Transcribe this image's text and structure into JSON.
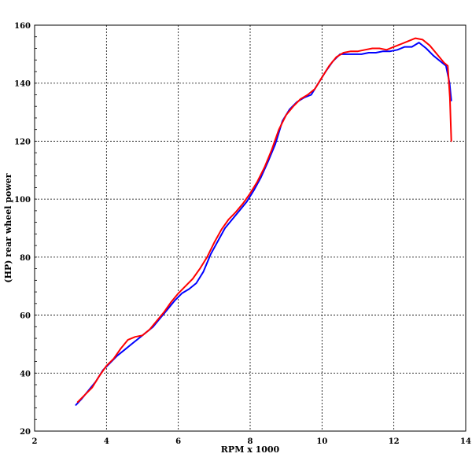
{
  "chart_data": {
    "type": "line",
    "xlabel": "RPM x 1000",
    "ylabel": "(HP) rear wheel power",
    "xlim": [
      2,
      14
    ],
    "ylim": [
      20,
      160
    ],
    "xticks": [
      2,
      4,
      6,
      8,
      10,
      12,
      14
    ],
    "yticks": [
      20,
      40,
      60,
      80,
      100,
      120,
      140,
      160
    ],
    "grid": true,
    "series": [
      {
        "color": "#0000ff",
        "points": [
          [
            3.15,
            29
          ],
          [
            3.3,
            31
          ],
          [
            3.5,
            34
          ],
          [
            3.7,
            37
          ],
          [
            3.9,
            41
          ],
          [
            4.1,
            43.5
          ],
          [
            4.3,
            46
          ],
          [
            4.5,
            48
          ],
          [
            4.7,
            50
          ],
          [
            4.9,
            52
          ],
          [
            5.1,
            54
          ],
          [
            5.3,
            56
          ],
          [
            5.5,
            59
          ],
          [
            5.7,
            62
          ],
          [
            5.9,
            65
          ],
          [
            6.1,
            67.5
          ],
          [
            6.3,
            69
          ],
          [
            6.5,
            71
          ],
          [
            6.7,
            75
          ],
          [
            6.9,
            81
          ],
          [
            7.1,
            85.5
          ],
          [
            7.3,
            90
          ],
          [
            7.5,
            93
          ],
          [
            7.7,
            96
          ],
          [
            7.9,
            99
          ],
          [
            8.1,
            103
          ],
          [
            8.3,
            107.5
          ],
          [
            8.5,
            113
          ],
          [
            8.7,
            119
          ],
          [
            8.9,
            127
          ],
          [
            9.1,
            131
          ],
          [
            9.3,
            133.5
          ],
          [
            9.5,
            135
          ],
          [
            9.7,
            136
          ],
          [
            9.9,
            140
          ],
          [
            10.1,
            144
          ],
          [
            10.3,
            147.5
          ],
          [
            10.5,
            150
          ],
          [
            10.7,
            150
          ],
          [
            10.9,
            150
          ],
          [
            11.1,
            150
          ],
          [
            11.3,
            150.5
          ],
          [
            11.5,
            150.5
          ],
          [
            11.7,
            151
          ],
          [
            11.9,
            151
          ],
          [
            12.1,
            151.5
          ],
          [
            12.3,
            152.5
          ],
          [
            12.5,
            152.5
          ],
          [
            12.7,
            154
          ],
          [
            12.9,
            152
          ],
          [
            13.1,
            149.5
          ],
          [
            13.3,
            147.5
          ],
          [
            13.45,
            146
          ],
          [
            13.55,
            140
          ],
          [
            13.6,
            134
          ]
        ]
      },
      {
        "color": "#ff0000",
        "points": [
          [
            3.2,
            30
          ],
          [
            3.4,
            32.5
          ],
          [
            3.6,
            35
          ],
          [
            3.8,
            39
          ],
          [
            4.0,
            42.5
          ],
          [
            4.2,
            45
          ],
          [
            4.4,
            48.5
          ],
          [
            4.6,
            51.5
          ],
          [
            4.8,
            52.5
          ],
          [
            5.0,
            53
          ],
          [
            5.2,
            55
          ],
          [
            5.4,
            58
          ],
          [
            5.6,
            61
          ],
          [
            5.8,
            64.5
          ],
          [
            6.0,
            67.5
          ],
          [
            6.2,
            70
          ],
          [
            6.4,
            72.5
          ],
          [
            6.6,
            76
          ],
          [
            6.8,
            80
          ],
          [
            7.0,
            85
          ],
          [
            7.2,
            89.5
          ],
          [
            7.4,
            93
          ],
          [
            7.6,
            95.5
          ],
          [
            7.8,
            98.5
          ],
          [
            8.0,
            102
          ],
          [
            8.2,
            106
          ],
          [
            8.4,
            111
          ],
          [
            8.6,
            117
          ],
          [
            8.8,
            124
          ],
          [
            9.0,
            129
          ],
          [
            9.2,
            132
          ],
          [
            9.4,
            134.5
          ],
          [
            9.6,
            136
          ],
          [
            9.8,
            138
          ],
          [
            10.0,
            142
          ],
          [
            10.2,
            146
          ],
          [
            10.4,
            149
          ],
          [
            10.6,
            150.5
          ],
          [
            10.8,
            151
          ],
          [
            11.0,
            151
          ],
          [
            11.2,
            151.5
          ],
          [
            11.4,
            152
          ],
          [
            11.6,
            152
          ],
          [
            11.8,
            151.5
          ],
          [
            12.0,
            152.5
          ],
          [
            12.2,
            153.5
          ],
          [
            12.4,
            154.5
          ],
          [
            12.6,
            155.5
          ],
          [
            12.8,
            155
          ],
          [
            13.0,
            153
          ],
          [
            13.2,
            150
          ],
          [
            13.4,
            147
          ],
          [
            13.5,
            146
          ],
          [
            13.56,
            135
          ],
          [
            13.6,
            120
          ]
        ]
      }
    ]
  }
}
